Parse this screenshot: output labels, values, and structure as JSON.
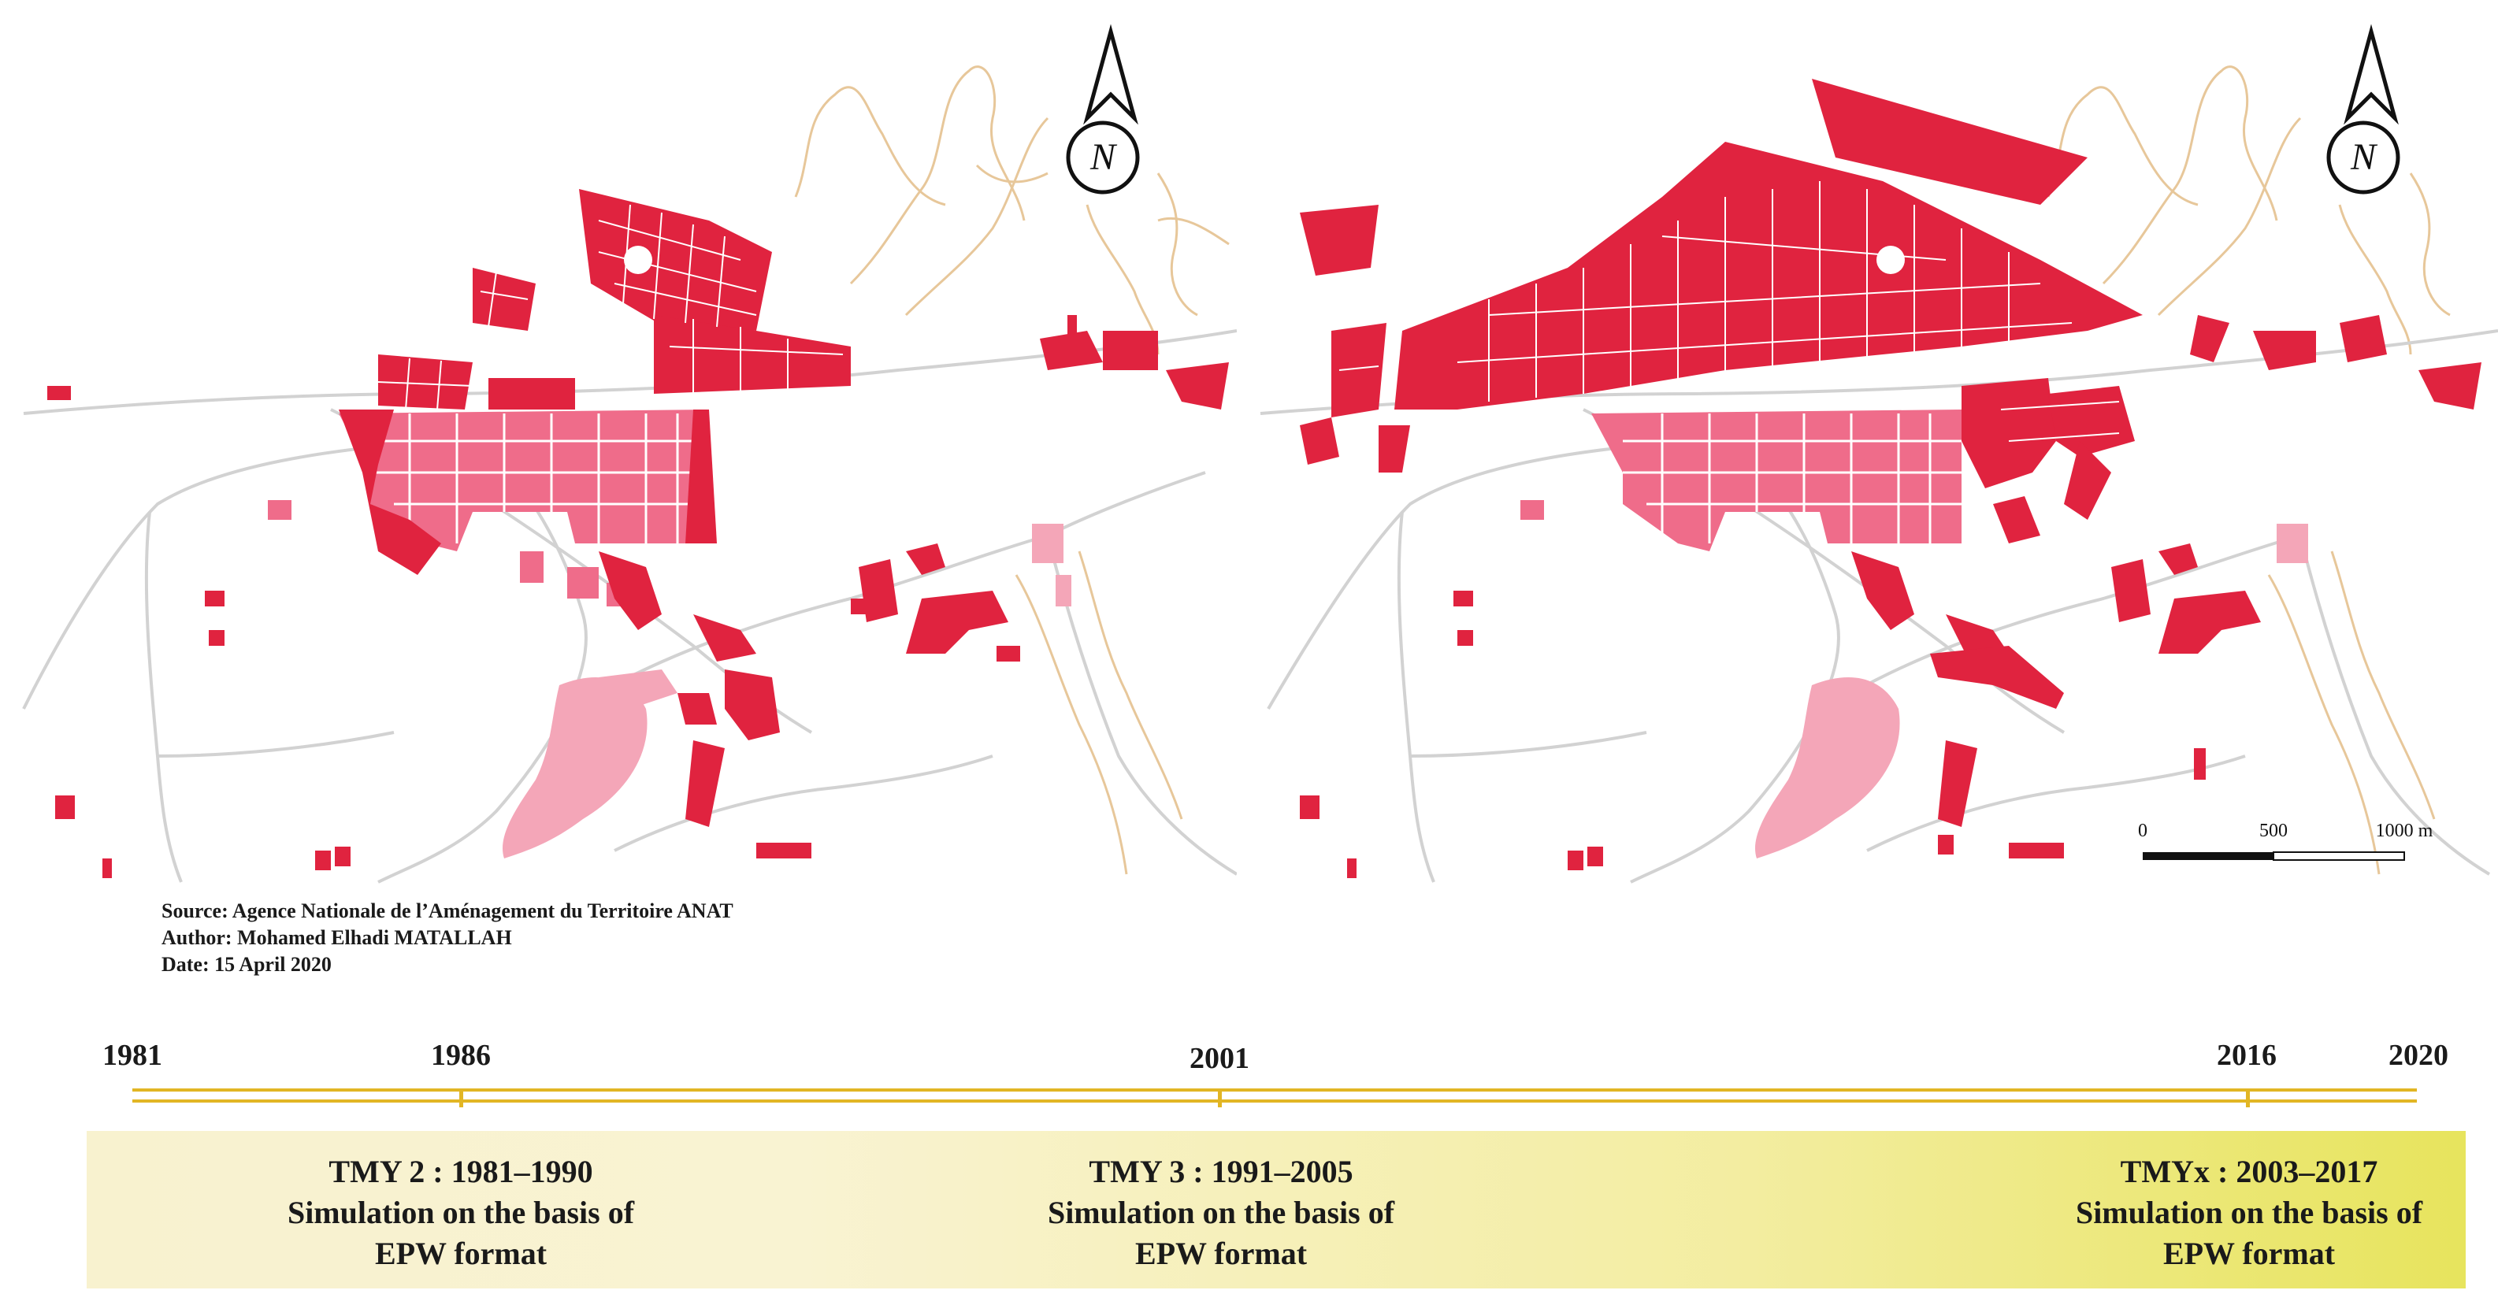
{
  "maps": {
    "left": {
      "north_label": "N"
    },
    "right": {
      "north_label": "N"
    },
    "scale_bar": {
      "labels": [
        "0",
        "500",
        "1000 m"
      ]
    }
  },
  "credits": {
    "source": "Source: Agence Nationale de l’Aménagement du Territoire ANAT",
    "author": "Author: Mohamed Elhadi MATALLAH",
    "date": "Date: 15 April 2020"
  },
  "colors": {
    "built_new": "#e0233f",
    "built_old": "#ef6c8a",
    "built_oldest": "#f4a6b8",
    "roads": "#d2d2d2",
    "contours": "#e7c79a",
    "timeline": "#e2b624"
  },
  "timeline": {
    "years": [
      {
        "label": "1981",
        "value": 1981
      },
      {
        "label": "1986",
        "value": 1986
      },
      {
        "label": "2001",
        "value": 2001
      },
      {
        "label": "2016",
        "value": 2016
      },
      {
        "label": "2020",
        "value": 2020
      }
    ],
    "periods": [
      {
        "title": "TMY 2 : 1981–1990",
        "line2": "Simulation on the basis of",
        "line3": "EPW format"
      },
      {
        "title": "TMY 3 : 1991–2005",
        "line2": "Simulation on the basis of",
        "line3": "EPW format"
      },
      {
        "title": "TMYx : 2003–2017",
        "line2": "Simulation on the basis of",
        "line3": "EPW format"
      }
    ]
  }
}
